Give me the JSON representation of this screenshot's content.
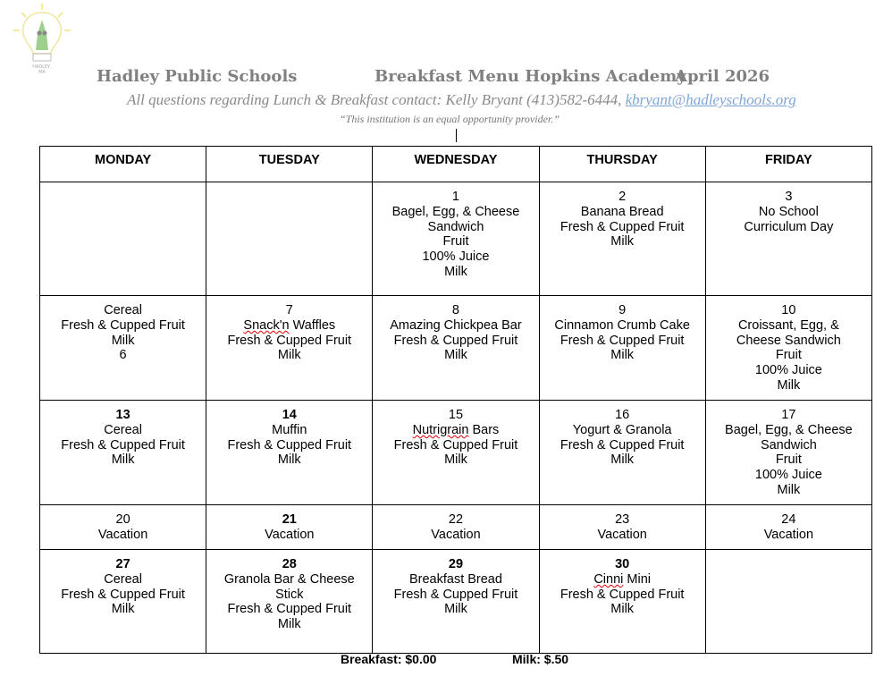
{
  "header": {
    "logo_text": "Eat Right Be Bright Hadley MA",
    "district": "Hadley Public Schools",
    "menu_title": "Breakfast Menu  Hopkins Academy",
    "month": "April 2026",
    "contact_prefix": "All questions regarding Lunch & Breakfast contact: Kelly Bryant (413)582-6444, ",
    "contact_email": "kbryant@hadleyschools.org",
    "equal_opportunity": "“This institution is an equal opportunity provider.”"
  },
  "colors": {
    "header_gray": "#808080",
    "link": "#7fa4d8"
  },
  "calendar": {
    "days": [
      "MONDAY",
      "TUESDAY",
      "WEDNESDAY",
      "THURSDAY",
      "FRIDAY"
    ],
    "row_heights_note": "",
    "weeks": [
      [
        {
          "lines": []
        },
        {
          "lines": []
        },
        {
          "lines": [
            "1",
            "Bagel, Egg, & Cheese",
            "Sandwich",
            "Fruit",
            "100% Juice",
            "Milk"
          ]
        },
        {
          "lines": [
            "2",
            "Banana Bread",
            "Fresh & Cupped Fruit",
            "Milk"
          ]
        },
        {
          "lines": [
            "3",
            "No School",
            "Curriculum Day"
          ]
        }
      ],
      [
        {
          "lines": [
            "Cereal",
            "Fresh & Cupped Fruit",
            "Milk",
            "6"
          ]
        },
        {
          "lines": [
            "7",
            "Snack'n Waffles",
            "Fresh & Cupped Fruit",
            "Milk"
          ]
        },
        {
          "lines": [
            "8",
            "Amazing Chickpea Bar",
            "Fresh & Cupped Fruit",
            "Milk"
          ]
        },
        {
          "lines": [
            "9",
            "Cinnamon Crumb Cake",
            "Fresh & Cupped Fruit",
            "Milk"
          ]
        },
        {
          "lines": [
            "10",
            "Croissant, Egg, &",
            "Cheese Sandwich",
            "Fruit",
            "100% Juice",
            "Milk"
          ]
        }
      ],
      [
        {
          "lines": [
            "13",
            "Cereal",
            "Fresh & Cupped Fruit",
            "Milk"
          ],
          "bold": true
        },
        {
          "lines": [
            "14",
            "Muffin",
            "Fresh & Cupped Fruit",
            "Milk"
          ],
          "bold": true
        },
        {
          "lines": [
            "15",
            "Nutrigrain Bars",
            "Fresh & Cupped Fruit",
            "Milk"
          ]
        },
        {
          "lines": [
            "16",
            "Yogurt & Granola",
            "Fresh & Cupped Fruit",
            "Milk"
          ]
        },
        {
          "lines": [
            "17",
            "Bagel, Egg, & Cheese",
            "Sandwich",
            "Fruit",
            "100% Juice",
            "Milk"
          ]
        }
      ],
      [
        {
          "lines": [
            "20",
            "Vacation"
          ]
        },
        {
          "lines": [
            "21",
            "Vacation"
          ],
          "bold": true
        },
        {
          "lines": [
            "22",
            "Vacation"
          ]
        },
        {
          "lines": [
            "23",
            "Vacation"
          ]
        },
        {
          "lines": [
            "24",
            "Vacation"
          ]
        }
      ],
      [
        {
          "lines": [
            "27",
            "Cereal",
            "Fresh & Cupped Fruit",
            "Milk"
          ],
          "bold": true
        },
        {
          "lines": [
            "28",
            "Granola Bar & Cheese",
            "Stick",
            "Fresh & Cupped Fruit",
            "Milk"
          ],
          "bold": true
        },
        {
          "lines": [
            "29",
            "Breakfast Bread",
            "Fresh & Cupped Fruit",
            "Milk"
          ],
          "bold": true
        },
        {
          "lines": [
            "30",
            "Cinni Mini",
            "Fresh & Cupped Fruit",
            "Milk"
          ],
          "bold": true
        },
        {
          "lines": []
        }
      ]
    ]
  },
  "footer": {
    "breakfast_price": "Breakfast: $0.00",
    "milk_price": "Milk: $.50"
  }
}
